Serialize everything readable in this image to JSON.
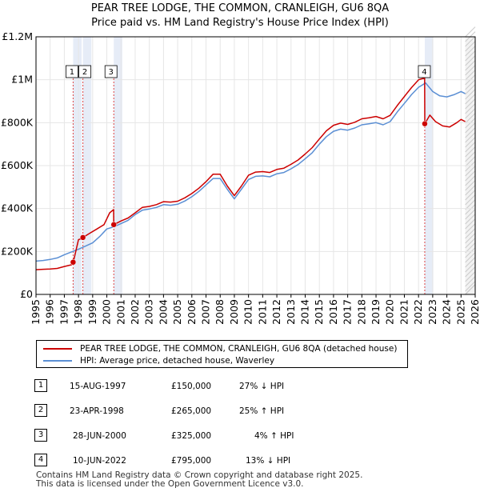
{
  "title_line1": "PEAR TREE LODGE, THE COMMON, CRANLEIGH, GU6 8QA",
  "title_line2": "Price paid vs. HM Land Registry's House Price Index (HPI)",
  "legend": {
    "property": "PEAR TREE LODGE, THE COMMON, CRANLEIGH, GU6 8QA (detached house)",
    "hpi": "HPI: Average price, detached house, Waverley"
  },
  "colors": {
    "property": "#cc0000",
    "hpi": "#5b8fd4",
    "sale_dash": "#dd4444",
    "shade": "#e6ecf7",
    "grid": "#e6e6e6"
  },
  "chart_data": {
    "type": "line",
    "xlim": [
      1995,
      2026
    ],
    "ylim": [
      0,
      1200000
    ],
    "x_ticks": [
      "1995",
      "1996",
      "1997",
      "1998",
      "1999",
      "2000",
      "2001",
      "2002",
      "2003",
      "2004",
      "2005",
      "2006",
      "2007",
      "2008",
      "2009",
      "2010",
      "2011",
      "2012",
      "2013",
      "2014",
      "2015",
      "2016",
      "2017",
      "2018",
      "2019",
      "2020",
      "2021",
      "2022",
      "2023",
      "2024",
      "2025",
      "2026"
    ],
    "y_ticks": [
      {
        "value": 0,
        "label": "£0"
      },
      {
        "value": 200000,
        "label": "£200K"
      },
      {
        "value": 400000,
        "label": "£400K"
      },
      {
        "value": 600000,
        "label": "£600K"
      },
      {
        "value": 800000,
        "label": "£800K"
      },
      {
        "value": 1000000,
        "label": "£1M"
      },
      {
        "value": 1200000,
        "label": "£1.2M"
      }
    ],
    "series": [
      {
        "name": "HPI: Average price, detached house, Waverley",
        "x": [
          1995.0,
          1995.5,
          1996.0,
          1996.5,
          1997.0,
          1997.5,
          1998.0,
          1998.5,
          1999.0,
          1999.5,
          2000.0,
          2000.5,
          2001.0,
          2001.5,
          2002.0,
          2002.5,
          2003.0,
          2003.5,
          2004.0,
          2004.5,
          2005.0,
          2005.5,
          2006.0,
          2006.5,
          2007.0,
          2007.5,
          2008.0,
          2008.5,
          2009.0,
          2009.5,
          2010.0,
          2010.5,
          2011.0,
          2011.5,
          2012.0,
          2012.5,
          2013.0,
          2013.5,
          2014.0,
          2014.5,
          2015.0,
          2015.5,
          2016.0,
          2016.5,
          2017.0,
          2017.5,
          2018.0,
          2018.5,
          2019.0,
          2019.5,
          2020.0,
          2020.5,
          2021.0,
          2021.5,
          2022.0,
          2022.5,
          2023.0,
          2023.5,
          2024.0,
          2024.5,
          2025.0,
          2025.3
        ],
        "values": [
          155000,
          158000,
          163000,
          170000,
          185000,
          198000,
          210000,
          225000,
          240000,
          270000,
          305000,
          315000,
          330000,
          345000,
          372000,
          392000,
          398000,
          405000,
          418000,
          415000,
          420000,
          435000,
          455000,
          480000,
          510000,
          540000,
          540000,
          490000,
          445000,
          490000,
          535000,
          550000,
          552000,
          548000,
          562000,
          568000,
          585000,
          605000,
          632000,
          660000,
          700000,
          735000,
          760000,
          770000,
          765000,
          775000,
          790000,
          795000,
          800000,
          790000,
          805000,
          850000,
          890000,
          930000,
          965000,
          985000,
          945000,
          925000,
          920000,
          930000,
          945000,
          935000
        ]
      },
      {
        "name": "PEAR TREE LODGE, THE COMMON, CRANLEIGH, GU6 8QA (detached house)",
        "x": [
          1995.0,
          1995.5,
          1996.0,
          1996.5,
          1997.0,
          1997.5,
          1997.62,
          1997.63,
          1998.0,
          1998.3,
          1998.31,
          1998.8,
          1999.3,
          1999.8,
          2000.2,
          2000.48,
          2000.49,
          2001.0,
          2001.5,
          2002.0,
          2002.5,
          2003.0,
          2003.5,
          2004.0,
          2004.5,
          2005.0,
          2005.5,
          2006.0,
          2006.5,
          2007.0,
          2007.5,
          2008.0,
          2008.5,
          2009.0,
          2009.5,
          2010.0,
          2010.5,
          2011.0,
          2011.5,
          2012.0,
          2012.5,
          2013.0,
          2013.5,
          2014.0,
          2014.5,
          2015.0,
          2015.5,
          2016.0,
          2016.5,
          2017.0,
          2017.5,
          2018.0,
          2018.5,
          2019.0,
          2019.5,
          2020.0,
          2020.5,
          2021.0,
          2021.5,
          2022.0,
          2022.43,
          2022.44,
          2022.8,
          2023.2,
          2023.7,
          2024.2,
          2024.7,
          2025.0,
          2025.3
        ],
        "values": [
          115000,
          117000,
          118000,
          121000,
          130000,
          138000,
          148000,
          150000,
          255000,
          262000,
          265000,
          285000,
          305000,
          325000,
          380000,
          395000,
          325000,
          342000,
          356000,
          380000,
          405000,
          410000,
          418000,
          432000,
          430000,
          434000,
          450000,
          470000,
          495000,
          525000,
          560000,
          560000,
          505000,
          460000,
          505000,
          555000,
          570000,
          572000,
          568000,
          582000,
          588000,
          606000,
          626000,
          654000,
          684000,
          724000,
          762000,
          788000,
          798000,
          792000,
          802000,
          818000,
          823000,
          829000,
          818000,
          834000,
          880000,
          922000,
          963000,
          1000000,
          1008000,
          795000,
          835000,
          805000,
          785000,
          780000,
          800000,
          815000,
          805000
        ]
      }
    ],
    "sale_markers": [
      {
        "id": "1",
        "x": 1997.62,
        "value": 150000
      },
      {
        "id": "2",
        "x": 1998.31,
        "value": 265000
      },
      {
        "id": "3",
        "x": 2000.49,
        "value": 325000
      },
      {
        "id": "4",
        "x": 2022.44,
        "value": 795000
      }
    ],
    "forecast_from": 2025.3
  },
  "sales": [
    {
      "id": "1",
      "date": "15-AUG-1997",
      "price": "£150,000",
      "delta": "27% ↓ HPI"
    },
    {
      "id": "2",
      "date": "23-APR-1998",
      "price": "£265,000",
      "delta": "25% ↑ HPI"
    },
    {
      "id": "3",
      "date": "28-JUN-2000",
      "price": "£325,000",
      "delta": "4% ↑ HPI"
    },
    {
      "id": "4",
      "date": "10-JUN-2022",
      "price": "£795,000",
      "delta": "13% ↓ HPI"
    }
  ],
  "footer": {
    "line1": "Contains HM Land Registry data © Crown copyright and database right 2025.",
    "line2": "This data is licensed under the Open Government Licence v3.0."
  }
}
